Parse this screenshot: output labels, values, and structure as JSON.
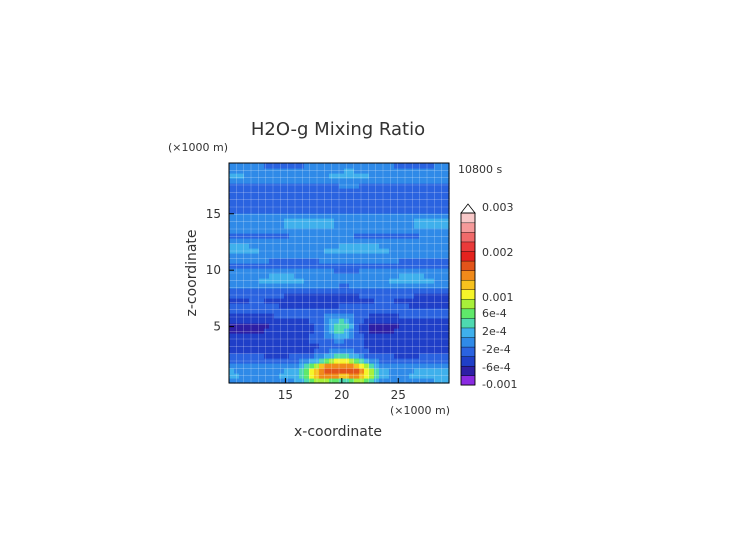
{
  "chart_data": {
    "type": "heatmap",
    "title": "H2O-g Mixing Ratio",
    "xlabel": "x-coordinate",
    "ylabel": "z-coordinate",
    "x_unit": "(×1000 m)",
    "y_unit": "(×1000 m)",
    "time_label": "10800 s",
    "xlim": [
      10,
      29.5
    ],
    "ylim": [
      0,
      19.5
    ],
    "x_ticks": [
      15,
      20,
      25
    ],
    "y_ticks": [
      5,
      10,
      15
    ],
    "colorbar": {
      "extend": "max",
      "tick_labels": [
        "0.003",
        "0.002",
        "0.001",
        "6e-4",
        "2e-4",
        "-2e-4",
        "-6e-4",
        "-0.001"
      ],
      "levels": [
        -0.001,
        -0.0008,
        -0.0006,
        -0.0004,
        -0.0002,
        0,
        0.0002,
        0.0004,
        0.0006,
        0.0008,
        0.001,
        0.0012,
        0.0015,
        0.0018,
        0.002,
        0.0023,
        0.0026,
        0.003
      ],
      "colors": [
        "#8a2be2",
        "#2d1fa5",
        "#1f3fc8",
        "#2a63e0",
        "#2f8ae8",
        "#3fb0ec",
        "#4ed9b0",
        "#5fe86a",
        "#a8f03a",
        "#f5f52a",
        "#f7c21e",
        "#f08a1a",
        "#e2541a",
        "#e4231e",
        "#e93a3a",
        "#f06a6a",
        "#f59a9a",
        "#f8c8c8"
      ]
    },
    "grid": true,
    "background_level": -0.0003,
    "features": [
      {
        "kind": "band",
        "z": 18.5,
        "value": 5e-05
      },
      {
        "kind": "band",
        "z": 14.2,
        "value": 8e-05
      },
      {
        "kind": "band",
        "z": 11.8,
        "value": 0.0001
      },
      {
        "kind": "band",
        "z": 9.2,
        "value": 6e-05
      },
      {
        "kind": "band",
        "z": 7.4,
        "value": -0.0005
      },
      {
        "kind": "band",
        "z": 5.0,
        "value": -0.0007
      },
      {
        "kind": "band",
        "z": 3.1,
        "value": -0.0005
      },
      {
        "kind": "band",
        "z": 0.8,
        "value": 0.0002
      },
      {
        "kind": "blob",
        "x": 19.9,
        "z": 5.0,
        "value": 0.0007
      },
      {
        "kind": "blob",
        "x": 19.9,
        "z": 1.8,
        "value": 0.00045
      },
      {
        "kind": "blob",
        "x": 18.6,
        "z": 0.9,
        "value": 0.0011
      },
      {
        "kind": "blob",
        "x": 21.3,
        "z": 0.9,
        "value": 0.0011
      },
      {
        "kind": "blob",
        "x": 20.0,
        "z": 0.3,
        "value": -0.0009
      }
    ]
  }
}
